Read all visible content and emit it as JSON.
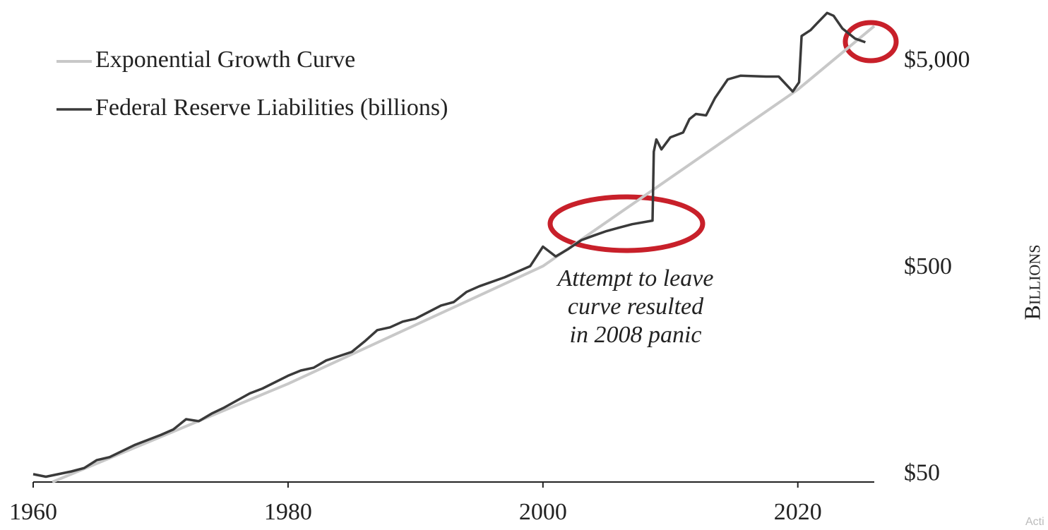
{
  "chart_data": {
    "type": "line",
    "log_scale": "y",
    "legend": "upper left",
    "xlim": [
      1960,
      2026
    ],
    "xticks": [
      1960,
      1980,
      2000,
      2020
    ],
    "ylim": [
      46.2,
      9930
    ],
    "yticks": [
      {
        "value": 50,
        "label": "$50"
      },
      {
        "value": 500,
        "label": "$500"
      },
      {
        "value": 5000,
        "label": "$5,000"
      }
    ],
    "y_label": "Billions",
    "annotation": [
      "Attempt to leave",
      "curve resulted",
      "in 2008 panic"
    ],
    "watermark": "Acti",
    "series": [
      {
        "name": "Exponential Growth Curve",
        "color": "#c8c8c8",
        "x": [
          1961.5,
          1980,
          2000,
          2020,
          2026
        ],
        "values": [
          46.2,
          138,
          512,
          3660,
          7430
        ]
      },
      {
        "name": "Federal Reserve Liabilities (billions)",
        "color": "#3a3a3a",
        "x": [
          1960,
          1961,
          1963,
          1964,
          1965,
          1966,
          1968,
          1970,
          1971,
          1972,
          1973,
          1974,
          1975,
          1977,
          1978,
          1980,
          1981,
          1982,
          1983,
          1985,
          1986,
          1987,
          1988,
          1989,
          1990,
          1992,
          1993,
          1994,
          1995,
          1997,
          1998,
          1999,
          2000,
          2001,
          2002,
          2003,
          2004,
          2005,
          2006,
          2007,
          2008.6,
          2008.7,
          2008.9,
          2009.3,
          2010,
          2011,
          2011.5,
          2012,
          2012.8,
          2013.5,
          2014.5,
          2015.5,
          2017.5,
          2018.5,
          2019.6,
          2020.1,
          2020.3,
          2021,
          2021.5,
          2022.3,
          2022.8,
          2023.5,
          2024.5,
          2025.3
        ],
        "values": [
          50.4,
          49,
          52,
          54,
          59,
          61,
          70,
          78,
          83,
          93,
          91,
          99,
          106,
          124,
          131,
          151,
          160,
          165,
          179,
          197,
          221,
          251,
          259,
          276,
          285,
          330,
          343,
          384,
          409,
          452,
          481,
          512,
          636,
          570,
          620,
          683,
          720,
          757,
          787,
          817,
          850,
          1833,
          2100,
          1880,
          2150,
          2270,
          2635,
          2790,
          2745,
          3330,
          4100,
          4270,
          4230,
          4230,
          3580,
          3970,
          6650,
          7100,
          7650,
          8600,
          8330,
          7230,
          6460,
          6200
        ]
      }
    ]
  }
}
